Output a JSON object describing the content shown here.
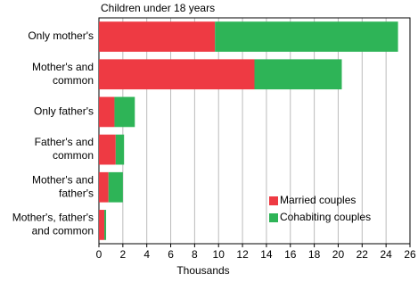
{
  "chart_data": {
    "type": "hbar-stacked",
    "title": "Children under 18 years",
    "xlabel": "Thousands",
    "categories": [
      "Only mother's",
      "Mother's and\ncommon",
      "Only father's",
      "Father's and\ncommon",
      "Mother's and\nfather's",
      "Mother's, father's\nand common"
    ],
    "series": [
      {
        "name": "Married couples",
        "color": "#ee3a43",
        "values": [
          9.7,
          13.0,
          1.3,
          1.4,
          0.8,
          0.45
        ]
      },
      {
        "name": "Cohabiting couples",
        "color": "#2eb457",
        "values": [
          15.3,
          7.3,
          1.7,
          0.7,
          1.2,
          0.15
        ]
      }
    ],
    "xlim": [
      0,
      26
    ],
    "xticks": [
      0,
      2,
      4,
      6,
      8,
      10,
      12,
      14,
      16,
      18,
      20,
      22,
      24,
      26
    ],
    "grid": true,
    "legend": "lower-right"
  }
}
